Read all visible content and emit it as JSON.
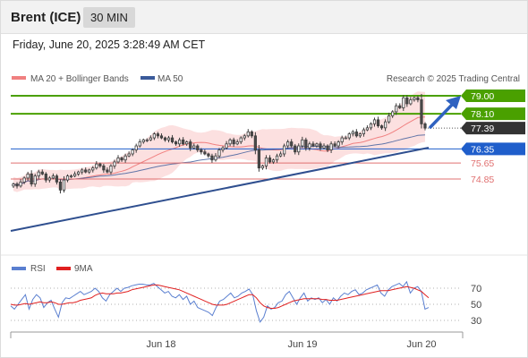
{
  "header": {
    "title": "Brent (ICE)",
    "interval": "30 MIN"
  },
  "datetime": "Friday, June 20, 2025 3:28:49 AM CET",
  "credit": "Research © 2025 Trading Central",
  "colors": {
    "up": "#ffffff",
    "down": "#4a4a4a",
    "candle_up": "#3c3c3c",
    "bollinger_fill": "#fbd6d6",
    "bollinger_line": "#f08080",
    "ma50": "#3a5a9a",
    "trend": "#2f4f8f",
    "resistance": "#4aa000",
    "pivot": "#1f5ecb",
    "support": "#e07070",
    "current": "#333333",
    "rsi": "#5a7fd0",
    "rsi_ma": "#e02020"
  },
  "chart_data": [
    {
      "type": "candlestick",
      "legend": [
        {
          "label": "MA 20 + Bollinger Bands",
          "color": "#f08080"
        },
        {
          "label": "MA 50",
          "color": "#3a5a9a"
        }
      ],
      "x_labels": [
        "Jun 18",
        "Jun 19",
        "Jun 20"
      ],
      "ylim": [
        73.8,
        79.4
      ],
      "levels": [
        {
          "value": 79.0,
          "label": "79.00",
          "kind": "resistance"
        },
        {
          "value": 78.1,
          "label": "78.10",
          "kind": "resistance"
        },
        {
          "value": 77.39,
          "label": "77.39",
          "kind": "current"
        },
        {
          "value": 76.35,
          "label": "76.35",
          "kind": "pivot"
        },
        {
          "value": 75.65,
          "label": "75.65",
          "kind": "support"
        },
        {
          "value": 74.85,
          "label": "74.85",
          "kind": "support"
        }
      ],
      "close": [
        74.6,
        74.5,
        74.7,
        74.9,
        75.1,
        74.6,
        75.0,
        75.2,
        75.1,
        74.8,
        74.9,
        75.0,
        74.7,
        74.3,
        74.8,
        75.0,
        75.0,
        75.1,
        75.2,
        75.3,
        75.2,
        75.3,
        75.4,
        75.6,
        75.5,
        75.3,
        75.2,
        75.5,
        75.7,
        75.9,
        75.8,
        76.0,
        76.1,
        76.3,
        76.5,
        76.7,
        76.8,
        76.8,
        76.9,
        77.1,
        77.0,
        76.9,
        76.8,
        76.9,
        76.7,
        76.6,
        76.8,
        76.6,
        76.7,
        76.4,
        76.5,
        76.3,
        76.2,
        76.1,
        76.0,
        75.8,
        76.0,
        76.3,
        76.4,
        76.6,
        76.8,
        76.6,
        76.7,
        76.9,
        77.0,
        77.2,
        77.0,
        76.3,
        75.4,
        75.5,
        75.9,
        75.7,
        75.8,
        76.0,
        76.1,
        76.5,
        76.7,
        76.5,
        76.2,
        76.5,
        76.8,
        76.4,
        76.6,
        76.5,
        76.6,
        76.4,
        76.5,
        76.3,
        76.6,
        76.5,
        76.7,
        76.9,
        76.9,
        77.1,
        77.2,
        77.0,
        77.1,
        77.3,
        77.4,
        77.6,
        77.8,
        77.5,
        77.4,
        77.7,
        78.0,
        78.2,
        78.5,
        78.4,
        78.9,
        78.6,
        78.8,
        78.9,
        78.8,
        77.6,
        77.39
      ]
    },
    {
      "type": "line",
      "legend": [
        {
          "label": "RSI",
          "color": "#5a7fd0"
        },
        {
          "label": "9MA",
          "color": "#e02020"
        }
      ],
      "y_ticks": [
        70,
        50,
        30
      ],
      "ylim": [
        22,
        80
      ],
      "series": [
        {
          "name": "RSI",
          "values": [
            48,
            44,
            50,
            56,
            62,
            44,
            56,
            62,
            58,
            46,
            52,
            55,
            44,
            34,
            52,
            58,
            57,
            60,
            63,
            66,
            62,
            64,
            66,
            70,
            66,
            58,
            54,
            62,
            66,
            70,
            66,
            70,
            71,
            73,
            74,
            75,
            75,
            74,
            74,
            76,
            72,
            68,
            64,
            66,
            60,
            58,
            62,
            56,
            60,
            50,
            54,
            46,
            44,
            42,
            40,
            36,
            46,
            54,
            56,
            60,
            64,
            58,
            60,
            64,
            66,
            69,
            62,
            42,
            28,
            34,
            48,
            44,
            46,
            52,
            54,
            62,
            66,
            58,
            50,
            58,
            64,
            54,
            58,
            56,
            58,
            52,
            56,
            50,
            58,
            54,
            60,
            64,
            62,
            66,
            68,
            62,
            64,
            68,
            70,
            72,
            74,
            64,
            60,
            68,
            72,
            74,
            76,
            72,
            78,
            64,
            70,
            72,
            66,
            44,
            46
          ]
        },
        {
          "name": "9MA",
          "values": [
            50,
            49,
            49,
            50,
            51,
            50,
            51,
            52,
            53,
            52,
            52,
            53,
            52,
            50,
            50,
            51,
            52,
            52,
            53,
            55,
            56,
            57,
            58,
            61,
            63,
            64,
            63,
            63,
            63,
            64,
            64,
            65,
            66,
            68,
            69,
            70,
            71,
            72,
            73,
            74,
            74,
            73,
            72,
            71,
            70,
            69,
            68,
            66,
            64,
            62,
            60,
            58,
            56,
            54,
            52,
            50,
            49,
            49,
            49,
            50,
            52,
            54,
            56,
            58,
            60,
            62,
            62,
            58,
            52,
            48,
            46,
            45,
            45,
            46,
            48,
            50,
            52,
            54,
            55,
            56,
            57,
            57,
            57,
            57,
            57,
            56,
            56,
            55,
            55,
            55,
            56,
            57,
            58,
            59,
            60,
            61,
            62,
            63,
            64,
            65,
            66,
            67,
            67,
            67,
            68,
            69,
            70,
            71,
            72,
            71,
            70,
            68,
            66,
            62,
            58
          ]
        }
      ]
    }
  ]
}
